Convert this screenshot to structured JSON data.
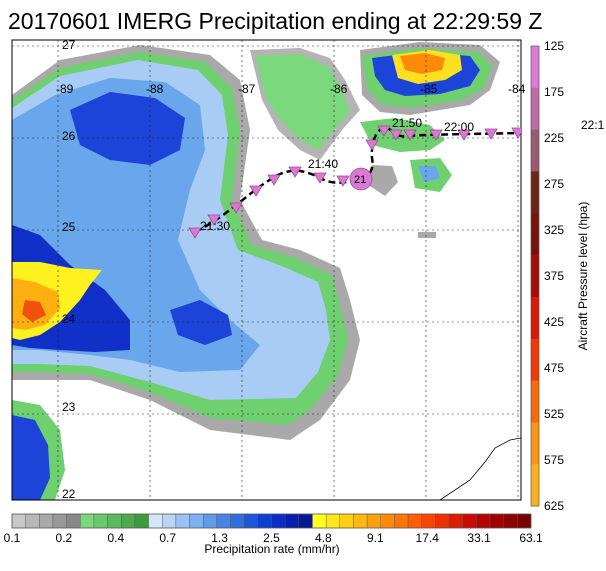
{
  "title": "20170601 IMERG Precipitation ending at 22:29:59 Z",
  "map": {
    "latitude_labels": [
      "27",
      "26",
      "25",
      "24",
      "23",
      "22"
    ],
    "longitude_labels": [
      "-89",
      "-88",
      "-87",
      "-86",
      "-85",
      "-84"
    ],
    "overflow_time_label": "22:1"
  },
  "flight_track": {
    "marker_style": "pink-inverted-triangle",
    "time_labels": [
      "21:30",
      "21:40",
      "21:50",
      "22:00"
    ],
    "waypoint_label": "21"
  },
  "pressure_colorbar": {
    "label": "Aircraft Pressure level (hpa)",
    "ticks": [
      "125",
      "175",
      "225",
      "275",
      "325",
      "375",
      "425",
      "475",
      "525",
      "575",
      "625"
    ],
    "colors": [
      "#e07ad8",
      "#c06aa8",
      "#9a5a70",
      "#6a2418",
      "#7a1408",
      "#a80c08",
      "#d81808",
      "#ef3a08",
      "#f76a08",
      "#fb9410",
      "#fcb020"
    ]
  },
  "precip_colorbar": {
    "label": "Precipitation rate (mm/hr)",
    "ticks": [
      "0.1",
      "0.2",
      "0.4",
      "0.7",
      "1.3",
      "2.5",
      "4.8",
      "9.1",
      "17.4",
      "33.1",
      "63.1"
    ],
    "colors": [
      "#c8c8c8",
      "#b8b8b8",
      "#a8a8a8",
      "#989898",
      "#888888",
      "#7cd87c",
      "#6cc86c",
      "#5cb85c",
      "#4caa4c",
      "#3c9c3c",
      "#d6e6fa",
      "#b8d4f6",
      "#9ac2f2",
      "#7cb0ee",
      "#5e9ce8",
      "#4684e4",
      "#2e6ee0",
      "#1c56dc",
      "#1040d2",
      "#0a2ec4",
      "#0620b0",
      "#041898",
      "#ffff20",
      "#ffe81a",
      "#ffd014",
      "#ffb810",
      "#ffa00c",
      "#ff8a08",
      "#ff7406",
      "#ff5e04",
      "#f84602",
      "#ee3000",
      "#e01c00",
      "#cc0c00",
      "#b60400",
      "#a00000",
      "#8c0000",
      "#7a0000"
    ]
  }
}
